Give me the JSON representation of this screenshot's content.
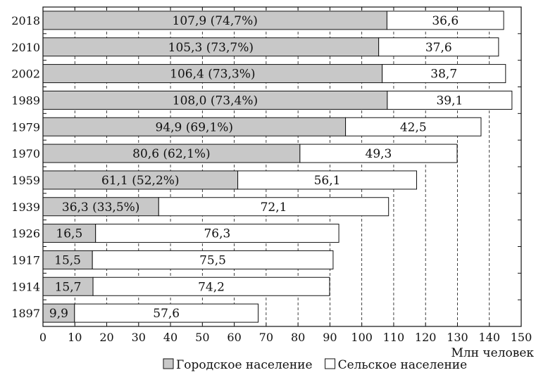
{
  "chart_data": {
    "type": "bar",
    "orientation": "horizontal",
    "stacked": true,
    "categories": [
      "2018",
      "2010",
      "2002",
      "1989",
      "1979",
      "1970",
      "1959",
      "1939",
      "1926",
      "1917",
      "1914",
      "1897"
    ],
    "series": [
      {
        "name": "Городское население",
        "color": "#c8c8c8",
        "values": [
          107.9,
          105.3,
          106.4,
          108.0,
          94.9,
          80.6,
          61.1,
          36.3,
          16.5,
          15.5,
          15.7,
          9.9
        ],
        "labels": [
          "107,9 (74,7%)",
          "105,3 (73,7%)",
          "106,4 (73,3%)",
          "108,0 (73,4%)",
          "94,9 (69,1%)",
          "80,6 (62,1%)",
          "61,1 (52,2%)",
          "36,3 (33,5%)",
          "16,5",
          "15,5",
          "15,7",
          "9,9"
        ]
      },
      {
        "name": "Сельское население",
        "color": "#ffffff",
        "values": [
          36.6,
          37.6,
          38.7,
          39.1,
          42.5,
          49.3,
          56.1,
          72.1,
          76.3,
          75.5,
          74.2,
          57.6
        ],
        "labels": [
          "36,6",
          "37,6",
          "38,7",
          "39,1",
          "42,5",
          "49,3",
          "56,1",
          "72,1",
          "76,3",
          "75,5",
          "74,2",
          "57,6"
        ]
      }
    ],
    "xlim": [
      0,
      150
    ],
    "xticks": [
      "0",
      "10",
      "20",
      "30",
      "40",
      "50",
      "60",
      "70",
      "80",
      "90",
      "100",
      "110",
      "120",
      "130",
      "140",
      "150"
    ],
    "xlabel": "Млн человек",
    "ylabel": "",
    "title": "",
    "grid": "vertical dashed",
    "legend_position": "bottom"
  }
}
